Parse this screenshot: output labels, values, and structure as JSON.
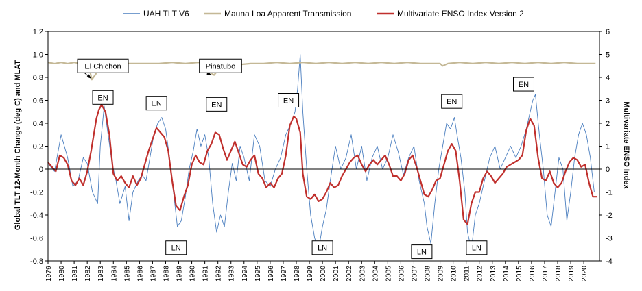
{
  "chart_data": {
    "type": "line",
    "title": "",
    "ylabel_left": "Global TLT 12-Month Change (deg C) and MLAT",
    "ylabel_right": "Multivariate ENSO Index",
    "xlim": [
      1979,
      2021.2
    ],
    "ylim_left": [
      -0.8,
      1.2
    ],
    "ylim_right": [
      -4,
      6
    ],
    "yticks_left": [
      "-0.8",
      "-0.6",
      "-0.4",
      "-0.2",
      "0",
      "0.2",
      "0.4",
      "0.6",
      "0.8",
      "1.0",
      "1.2"
    ],
    "yticks_right": [
      "-4",
      "-3",
      "-2",
      "-1",
      "0",
      "1",
      "2",
      "3",
      "4",
      "5",
      "6"
    ],
    "xticks": [
      "1979",
      "1980",
      "1981",
      "1982",
      "1983",
      "1984",
      "1985",
      "1986",
      "1987",
      "1988",
      "1989",
      "1990",
      "1991",
      "1992",
      "1993",
      "1994",
      "1995",
      "1996",
      "1997",
      "1998",
      "1999",
      "2000",
      "2001",
      "2002",
      "2003",
      "2004",
      "2005",
      "2006",
      "2007",
      "2008",
      "2009",
      "2010",
      "2011",
      "2012",
      "2013",
      "2014",
      "2015",
      "2016",
      "2017",
      "2018",
      "2019",
      "2020"
    ],
    "grid": false,
    "legend_position": "top",
    "series": [
      {
        "name": "UAH TLT V6",
        "axis": "left",
        "color": "#4a7ebf",
        "x": [
          1979.0,
          1979.5,
          1980.0,
          1980.5,
          1980.9,
          1981.3,
          1981.7,
          1982.0,
          1982.4,
          1982.8,
          1983.0,
          1983.3,
          1983.6,
          1983.9,
          1984.2,
          1984.5,
          1984.9,
          1985.2,
          1985.5,
          1985.9,
          1986.2,
          1986.5,
          1986.8,
          1987.1,
          1987.4,
          1987.7,
          1988.0,
          1988.3,
          1988.6,
          1988.9,
          1989.2,
          1989.5,
          1989.8,
          1990.1,
          1990.4,
          1990.7,
          1991.0,
          1991.3,
          1991.6,
          1991.9,
          1992.2,
          1992.5,
          1992.8,
          1993.1,
          1993.4,
          1993.7,
          1994.0,
          1994.4,
          1994.8,
          1995.2,
          1995.6,
          1996.0,
          1996.4,
          1996.8,
          1997.2,
          1997.6,
          1997.9,
          1998.1,
          1998.3,
          1998.5,
          1998.8,
          1999.1,
          1999.4,
          1999.7,
          2000.0,
          2000.3,
          2000.6,
          2001.0,
          2001.4,
          2001.8,
          2002.2,
          2002.6,
          2003.0,
          2003.4,
          2003.8,
          2004.2,
          2004.6,
          2005.0,
          2005.4,
          2005.8,
          2006.2,
          2006.6,
          2007.0,
          2007.4,
          2007.8,
          2008.0,
          2008.3,
          2008.6,
          2008.9,
          2009.2,
          2009.5,
          2009.8,
          2010.1,
          2010.3,
          2010.6,
          2010.9,
          2011.1,
          2011.4,
          2011.7,
          2012.0,
          2012.4,
          2012.8,
          2013.2,
          2013.6,
          2014.0,
          2014.4,
          2014.8,
          2015.2,
          2015.6,
          2015.9,
          2016.1,
          2016.3,
          2016.6,
          2016.9,
          2017.2,
          2017.5,
          2017.8,
          2018.1,
          2018.4,
          2018.7,
          2019.0,
          2019.3,
          2019.6,
          2019.9,
          2020.2,
          2020.5,
          2020.8
        ],
        "values": [
          0.05,
          -0.02,
          0.3,
          0.1,
          -0.15,
          -0.1,
          0.1,
          0.05,
          -0.2,
          -0.3,
          0.2,
          0.55,
          0.3,
          0.05,
          -0.1,
          -0.3,
          -0.15,
          -0.45,
          -0.2,
          -0.1,
          -0.05,
          -0.1,
          0.1,
          0.3,
          0.4,
          0.45,
          0.35,
          0.1,
          -0.2,
          -0.5,
          -0.45,
          -0.25,
          0.0,
          0.15,
          0.35,
          0.2,
          0.3,
          0.1,
          -0.3,
          -0.55,
          -0.4,
          -0.5,
          -0.2,
          0.05,
          -0.1,
          0.2,
          0.1,
          -0.1,
          0.3,
          0.2,
          -0.1,
          -0.15,
          0.0,
          0.1,
          0.3,
          0.4,
          0.5,
          0.7,
          1.0,
          0.5,
          0.0,
          -0.4,
          -0.6,
          -0.7,
          -0.5,
          -0.35,
          -0.1,
          0.2,
          0.0,
          0.1,
          0.3,
          0.0,
          0.2,
          -0.1,
          0.1,
          0.2,
          0.0,
          0.1,
          0.3,
          0.15,
          -0.05,
          0.1,
          0.2,
          -0.1,
          -0.3,
          -0.5,
          -0.65,
          -0.3,
          0.0,
          0.2,
          0.4,
          0.35,
          0.45,
          0.3,
          0.1,
          -0.2,
          -0.55,
          -0.7,
          -0.4,
          -0.3,
          -0.1,
          0.1,
          0.2,
          0.0,
          0.1,
          0.2,
          0.1,
          0.2,
          0.35,
          0.5,
          0.6,
          0.65,
          0.3,
          0.0,
          -0.4,
          -0.5,
          -0.2,
          0.1,
          0.0,
          -0.45,
          -0.2,
          0.1,
          0.3,
          0.4,
          0.3,
          0.1,
          -0.2
        ]
      },
      {
        "name": "Mauna Loa Apparent Transmission",
        "axis": "left",
        "color": "#c4b896",
        "x": [
          1979.0,
          1979.5,
          1980.0,
          1980.5,
          1981.0,
          1981.5,
          1982.0,
          1982.2,
          1982.35,
          1982.6,
          1982.9,
          1983.3,
          1983.8,
          1984.5,
          1985.5,
          1986.5,
          1987.5,
          1988.5,
          1989.5,
          1990.5,
          1991.2,
          1991.45,
          1991.7,
          1992.0,
          1992.4,
          1992.9,
          1993.5,
          1994.5,
          1995.5,
          1996.5,
          1997.5,
          1998.5,
          1999.5,
          2000.5,
          2001.5,
          2002.5,
          2003.5,
          2004.5,
          2005.5,
          2006.5,
          2007.5,
          2008.5,
          2009.0,
          2009.2,
          2009.6,
          2010.5,
          2011.5,
          2012.5,
          2013.5,
          2014.5,
          2015.5,
          2016.5,
          2017.5,
          2018.5,
          2019.5,
          2020.5,
          2020.9
        ],
        "values": [
          0.93,
          0.92,
          0.93,
          0.92,
          0.93,
          0.92,
          0.92,
          0.86,
          0.78,
          0.82,
          0.87,
          0.9,
          0.91,
          0.92,
          0.92,
          0.92,
          0.92,
          0.93,
          0.92,
          0.93,
          0.92,
          0.84,
          0.82,
          0.86,
          0.88,
          0.9,
          0.91,
          0.92,
          0.92,
          0.93,
          0.92,
          0.93,
          0.92,
          0.93,
          0.92,
          0.93,
          0.92,
          0.93,
          0.92,
          0.93,
          0.92,
          0.92,
          0.92,
          0.9,
          0.92,
          0.93,
          0.92,
          0.93,
          0.92,
          0.93,
          0.92,
          0.93,
          0.92,
          0.93,
          0.92,
          0.92,
          0.92
        ]
      },
      {
        "name": "Multivariate ENSO Index Version 2",
        "axis": "right",
        "color": "#c0302d",
        "x": [
          1979.0,
          1979.3,
          1979.6,
          1979.9,
          1980.2,
          1980.5,
          1980.8,
          1981.1,
          1981.4,
          1981.7,
          1982.0,
          1982.3,
          1982.5,
          1982.7,
          1982.9,
          1983.1,
          1983.4,
          1983.7,
          1984.0,
          1984.3,
          1984.6,
          1984.9,
          1985.2,
          1985.5,
          1985.8,
          1986.1,
          1986.4,
          1986.7,
          1987.0,
          1987.3,
          1987.6,
          1987.9,
          1988.2,
          1988.5,
          1988.8,
          1989.1,
          1989.4,
          1989.7,
          1990.0,
          1990.3,
          1990.6,
          1990.9,
          1991.2,
          1991.5,
          1991.8,
          1992.1,
          1992.4,
          1992.7,
          1993.0,
          1993.3,
          1993.6,
          1993.9,
          1994.2,
          1994.5,
          1994.8,
          1995.1,
          1995.4,
          1995.7,
          1996.0,
          1996.3,
          1996.6,
          1996.9,
          1997.2,
          1997.5,
          1997.8,
          1998.0,
          1998.3,
          1998.5,
          1998.8,
          1999.1,
          1999.4,
          1999.7,
          2000.0,
          2000.3,
          2000.6,
          2000.9,
          2001.2,
          2001.5,
          2001.8,
          2002.1,
          2002.4,
          2002.7,
          2003.0,
          2003.3,
          2003.6,
          2003.9,
          2004.2,
          2004.5,
          2004.8,
          2005.1,
          2005.4,
          2005.7,
          2006.0,
          2006.3,
          2006.6,
          2006.9,
          2007.2,
          2007.5,
          2007.8,
          2008.1,
          2008.4,
          2008.7,
          2009.0,
          2009.3,
          2009.6,
          2009.9,
          2010.2,
          2010.5,
          2010.8,
          2011.1,
          2011.4,
          2011.7,
          2012.0,
          2012.3,
          2012.6,
          2012.9,
          2013.2,
          2013.5,
          2013.8,
          2014.1,
          2014.4,
          2014.7,
          2015.0,
          2015.3,
          2015.6,
          2015.9,
          2016.2,
          2016.5,
          2016.8,
          2017.1,
          2017.4,
          2017.7,
          2018.0,
          2018.3,
          2018.6,
          2018.9,
          2019.2,
          2019.5,
          2019.8,
          2020.1,
          2020.4,
          2020.7,
          2021.0
        ],
        "values": [
          0.3,
          0.1,
          -0.1,
          0.6,
          0.5,
          0.2,
          -0.5,
          -0.7,
          -0.4,
          -0.7,
          -0.1,
          0.8,
          1.5,
          2.2,
          2.6,
          2.8,
          2.5,
          1.5,
          -0.2,
          -0.5,
          -0.3,
          -0.6,
          -0.8,
          -0.3,
          -0.7,
          -0.4,
          0.2,
          0.8,
          1.3,
          1.8,
          1.6,
          1.4,
          0.8,
          -0.5,
          -1.6,
          -1.8,
          -1.2,
          -0.7,
          0.2,
          0.6,
          0.3,
          0.2,
          0.8,
          1.1,
          1.6,
          1.5,
          0.9,
          0.4,
          0.8,
          1.2,
          0.7,
          0.2,
          0.1,
          0.4,
          0.6,
          -0.2,
          -0.4,
          -0.8,
          -0.6,
          -0.8,
          -0.4,
          -0.2,
          0.6,
          1.9,
          2.3,
          2.2,
          1.6,
          -0.2,
          -1.2,
          -1.3,
          -1.1,
          -1.4,
          -1.3,
          -1.0,
          -0.6,
          -0.8,
          -0.7,
          -0.3,
          0.0,
          0.3,
          0.5,
          0.6,
          0.2,
          -0.1,
          0.2,
          0.4,
          0.2,
          0.4,
          0.6,
          0.2,
          -0.3,
          -0.3,
          -0.5,
          -0.2,
          0.4,
          0.6,
          0.1,
          -0.5,
          -1.1,
          -1.2,
          -0.9,
          -0.5,
          -0.4,
          0.2,
          0.8,
          1.1,
          0.8,
          -0.5,
          -2.2,
          -2.4,
          -1.5,
          -1.0,
          -1.0,
          -0.4,
          -0.1,
          -0.3,
          -0.6,
          -0.4,
          -0.2,
          0.1,
          0.2,
          0.3,
          0.4,
          0.6,
          1.7,
          2.2,
          1.9,
          0.5,
          -0.4,
          -0.5,
          -0.1,
          -0.6,
          -0.8,
          -0.6,
          -0.1,
          0.3,
          0.5,
          0.4,
          0.1,
          0.2,
          -0.6,
          -1.2,
          -1.2
        ]
      }
    ],
    "annotations": [
      {
        "text": "El Chichon",
        "x": 1983.2,
        "y": 0.9,
        "type": "box",
        "arrow_to": [
          1982.3,
          0.79
        ]
      },
      {
        "text": "Pinatubo",
        "x": 1992.2,
        "y": 0.9,
        "type": "box",
        "arrow_to": [
          1991.5,
          0.82
        ]
      },
      {
        "text": "EN",
        "x": 1983.2,
        "y": 0.625,
        "type": "box"
      },
      {
        "text": "EN",
        "x": 1987.3,
        "y": 0.575,
        "type": "box"
      },
      {
        "text": "EN",
        "x": 1991.9,
        "y": 0.565,
        "type": "box"
      },
      {
        "text": "EN",
        "x": 1997.4,
        "y": 0.6,
        "type": "box"
      },
      {
        "text": "EN",
        "x": 2009.9,
        "y": 0.59,
        "type": "box"
      },
      {
        "text": "EN",
        "x": 2015.4,
        "y": 0.74,
        "type": "box"
      },
      {
        "text": "LN",
        "x": 1988.8,
        "y": -0.685,
        "type": "box"
      },
      {
        "text": "LN",
        "x": 2000.0,
        "y": -0.685,
        "type": "box"
      },
      {
        "text": "LN",
        "x": 2007.6,
        "y": -0.72,
        "type": "box"
      },
      {
        "text": "LN",
        "x": 2011.8,
        "y": -0.685,
        "type": "box"
      }
    ]
  }
}
